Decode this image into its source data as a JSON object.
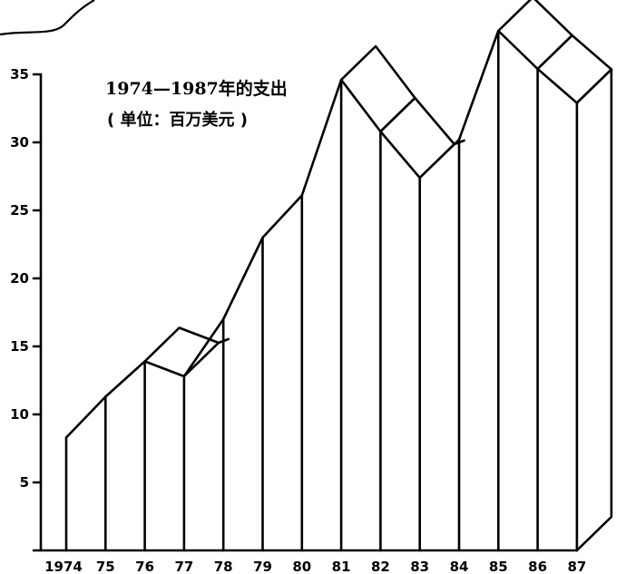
{
  "chart_data": {
    "type": "area",
    "title": "1974—1987年的支出",
    "subtitle": "( 单位：百万美元 )",
    "x": [
      "1974",
      "75",
      "76",
      "77",
      "78",
      "79",
      "80",
      "81",
      "82",
      "83",
      "84",
      "85",
      "86",
      "87"
    ],
    "values": [
      8.3,
      11.3,
      13.9,
      12.8,
      17.0,
      23.0,
      26.1,
      34.6,
      30.8,
      27.4,
      30.2,
      38.2,
      35.4,
      32.9
    ],
    "yticks": [
      5,
      10,
      15,
      20,
      25,
      30,
      35
    ],
    "ylim": [
      0,
      38
    ],
    "style": "3d-ribbon",
    "color": "#000000"
  }
}
